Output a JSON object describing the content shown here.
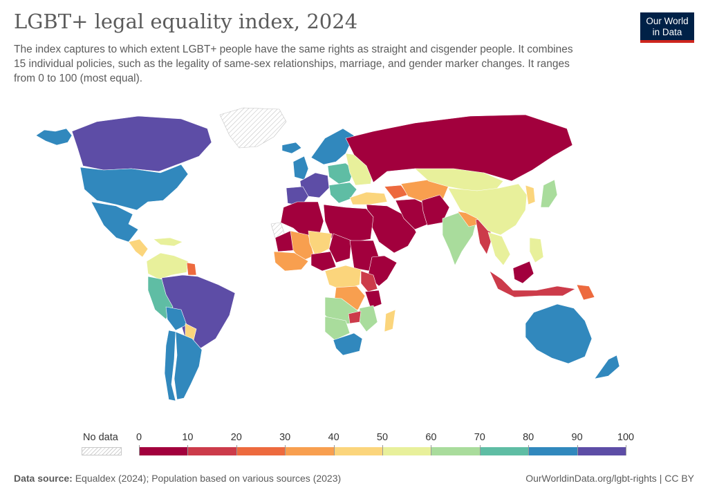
{
  "header": {
    "title": "LGBT+ legal equality index, 2024",
    "subtitle": "The index captures to which extent LGBT+ people have the same rights as straight and cisgender people. It combines 15 individual policies, such as the legality of same-sex relationships, marriage, and gender marker changes. It ranges from 0 to 100 (most equal).",
    "logo_line1": "Our World",
    "logo_line2": "in Data"
  },
  "legend": {
    "nodata_label": "No data",
    "ticks": [
      "0",
      "10",
      "20",
      "30",
      "40",
      "50",
      "60",
      "70",
      "80",
      "90",
      "100"
    ],
    "colors": [
      "#a2003d",
      "#cc3b4a",
      "#ed6a3e",
      "#f89f4f",
      "#fbd57c",
      "#e8f09b",
      "#a9dc9c",
      "#5fbda4",
      "#3188bd",
      "#5d4da6"
    ]
  },
  "map_data": {
    "regions": [
      {
        "key": "alaska",
        "bin": 8
      },
      {
        "key": "canada",
        "bin": 9
      },
      {
        "key": "greenland",
        "bin": -1
      },
      {
        "key": "usa",
        "bin": 8
      },
      {
        "key": "mexico",
        "bin": 8
      },
      {
        "key": "central-america",
        "bin": 4
      },
      {
        "key": "caribbean",
        "bin": 5
      },
      {
        "key": "colombia-venezuela",
        "bin": 5
      },
      {
        "key": "guyana",
        "bin": 2
      },
      {
        "key": "brazil",
        "bin": 9
      },
      {
        "key": "peru",
        "bin": 7
      },
      {
        "key": "bolivia",
        "bin": 8
      },
      {
        "key": "paraguay",
        "bin": 4
      },
      {
        "key": "chile",
        "bin": 8
      },
      {
        "key": "argentina",
        "bin": 8
      },
      {
        "key": "iceland",
        "bin": 8
      },
      {
        "key": "scandinavia",
        "bin": 8
      },
      {
        "key": "uk-ireland",
        "bin": 8
      },
      {
        "key": "western-europe",
        "bin": 9
      },
      {
        "key": "iberia",
        "bin": 9
      },
      {
        "key": "central-europe",
        "bin": 7
      },
      {
        "key": "eastern-europe",
        "bin": 5
      },
      {
        "key": "balkans",
        "bin": 7
      },
      {
        "key": "russia",
        "bin": 0
      },
      {
        "key": "turkey",
        "bin": 4
      },
      {
        "key": "caucasus",
        "bin": 2
      },
      {
        "key": "middle-east",
        "bin": 0
      },
      {
        "key": "iran",
        "bin": 0
      },
      {
        "key": "central-asia",
        "bin": 3
      },
      {
        "key": "afghanistan-pakistan",
        "bin": 0
      },
      {
        "key": "india",
        "bin": 6
      },
      {
        "key": "nepal-bangladesh",
        "bin": 3
      },
      {
        "key": "myanmar",
        "bin": 1
      },
      {
        "key": "kazakhstan-mongolia",
        "bin": 5
      },
      {
        "key": "china",
        "bin": 5
      },
      {
        "key": "korea",
        "bin": 4
      },
      {
        "key": "japan",
        "bin": 6
      },
      {
        "key": "southeast-asia",
        "bin": 5
      },
      {
        "key": "malaysia",
        "bin": 0
      },
      {
        "key": "indonesia",
        "bin": 1
      },
      {
        "key": "philippines",
        "bin": 5
      },
      {
        "key": "papua-new-guinea",
        "bin": 2
      },
      {
        "key": "australia",
        "bin": 8
      },
      {
        "key": "new-zealand",
        "bin": 8
      },
      {
        "key": "morocco-algeria",
        "bin": 0
      },
      {
        "key": "libya-egypt",
        "bin": 0
      },
      {
        "key": "western-sahara",
        "bin": -1
      },
      {
        "key": "mauritania",
        "bin": 0
      },
      {
        "key": "mali",
        "bin": 3
      },
      {
        "key": "niger",
        "bin": 4
      },
      {
        "key": "west-africa-coast",
        "bin": 3
      },
      {
        "key": "nigeria",
        "bin": 0
      },
      {
        "key": "chad",
        "bin": 0
      },
      {
        "key": "sudan",
        "bin": 0
      },
      {
        "key": "ethiopia-somalia",
        "bin": 0
      },
      {
        "key": "central-africa",
        "bin": 4
      },
      {
        "key": "drc",
        "bin": 3
      },
      {
        "key": "east-africa",
        "bin": 1
      },
      {
        "key": "tanzania",
        "bin": 0
      },
      {
        "key": "angola-zambia",
        "bin": 6
      },
      {
        "key": "namibia-botswana",
        "bin": 6
      },
      {
        "key": "mozambique",
        "bin": 6
      },
      {
        "key": "south-africa",
        "bin": 8
      },
      {
        "key": "madagascar",
        "bin": 4
      },
      {
        "key": "zimbabwe",
        "bin": 1
      }
    ]
  },
  "footer": {
    "source_label": "Data source:",
    "source_text": " Equaldex (2024); Population based on various sources (2023)",
    "url_text": "OurWorldinData.org/lgbt-rights | CC BY"
  }
}
